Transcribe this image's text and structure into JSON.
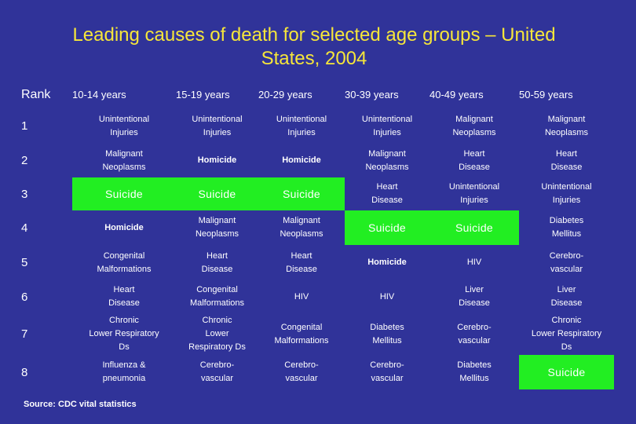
{
  "slide": {
    "title_line1": "Leading causes of death for selected age groups – United",
    "title_line2": "States, 2004",
    "source": "Source: CDC vital statistics"
  },
  "table": {
    "rank_header": "Rank",
    "age_headers": [
      "10-14 years",
      "15-19 years",
      "20-29 years",
      "30-39 years",
      "40-49 years",
      "50-59 years"
    ],
    "rows": [
      {
        "rank": "1",
        "cells": [
          "Unintentional\nInjuries",
          "Unintentional\nInjuries",
          "Unintentional\nInjuries",
          "Unintentional\nInjuries",
          "Malignant\nNeoplasms",
          "Malignant\nNeoplasms"
        ]
      },
      {
        "rank": "2",
        "cells": [
          "Malignant\nNeoplasms",
          "Homicide",
          "Homicide",
          "Malignant\nNeoplasms",
          "Heart\nDisease",
          "Heart\nDisease"
        ]
      },
      {
        "rank": "3",
        "cells": [
          "Suicide",
          "Suicide",
          "Suicide",
          "Heart\nDisease",
          "Unintentional\nInjuries",
          "Unintentional\nInjuries"
        ]
      },
      {
        "rank": "4",
        "cells": [
          "Homicide",
          "Malignant\nNeoplasms",
          "Malignant\nNeoplasms",
          "Suicide",
          "Suicide",
          "Diabetes\nMellitus"
        ]
      },
      {
        "rank": "5",
        "cells": [
          "Congenital\nMalformations",
          "Heart\nDisease",
          "Heart\nDisease",
          "Homicide",
          "HIV",
          "Cerebro-\nvascular"
        ]
      },
      {
        "rank": "6",
        "cells": [
          "Heart\nDisease",
          "Congenital\nMalformations",
          "HIV",
          "HIV",
          "Liver\nDisease",
          "Liver\nDisease"
        ]
      },
      {
        "rank": "7",
        "cells": [
          "Chronic\nLower Respiratory\nDs",
          "Chronic\nLower\nRespiratory Ds",
          "Congenital\nMalformations",
          "Diabetes\nMellitus",
          "Cerebro-\nvascular",
          "Chronic\nLower Respiratory\nDs"
        ]
      },
      {
        "rank": "8",
        "cells": [
          "Influenza &\npneumonia",
          "Cerebro-\nvascular",
          "Cerebro-\nvascular",
          "Cerebro-\nvascular",
          "Diabetes\nMellitus",
          "Suicide"
        ]
      }
    ]
  },
  "colors": {
    "background": "#303399",
    "title": "#f6e63a",
    "suicide_highlight": "#22ee22"
  }
}
